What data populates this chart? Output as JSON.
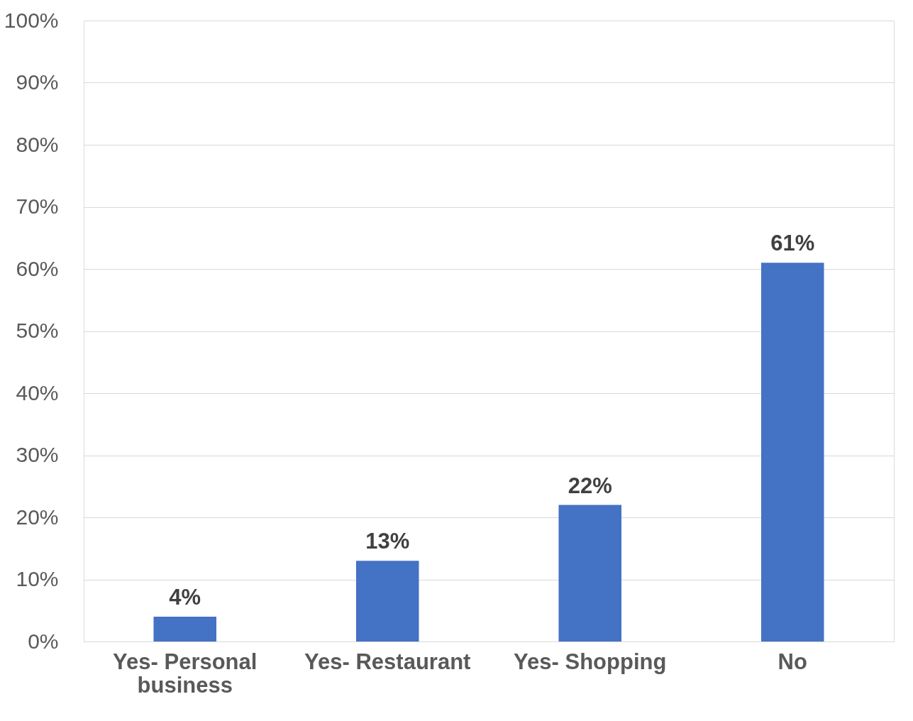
{
  "chart_data": {
    "type": "bar",
    "categories": [
      "Yes- Personal business",
      "Yes- Restaurant",
      "Yes- Shopping",
      "No"
    ],
    "values": [
      4,
      13,
      22,
      61
    ],
    "value_labels": [
      "4%",
      "13%",
      "22%",
      "61%"
    ],
    "color": "#4472c4",
    "ylim": [
      0,
      100
    ],
    "yticks": [
      {
        "value": 0,
        "label": "0%"
      },
      {
        "value": 10,
        "label": "10%"
      },
      {
        "value": 20,
        "label": "20%"
      },
      {
        "value": 30,
        "label": "30%"
      },
      {
        "value": 40,
        "label": "40%"
      },
      {
        "value": 50,
        "label": "50%"
      },
      {
        "value": 60,
        "label": "60%"
      },
      {
        "value": 70,
        "label": "70%"
      },
      {
        "value": 80,
        "label": "80%"
      },
      {
        "value": 90,
        "label": "90%"
      },
      {
        "value": 100,
        "label": "100%"
      }
    ],
    "grid": "y"
  }
}
